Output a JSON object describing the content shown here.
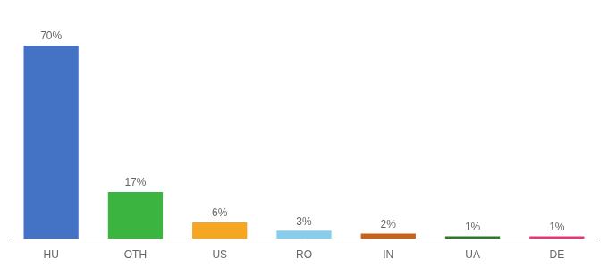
{
  "chart_data": {
    "type": "bar",
    "categories": [
      "HU",
      "OTH",
      "US",
      "RO",
      "IN",
      "UA",
      "DE"
    ],
    "values": [
      70,
      17,
      6,
      3,
      2,
      1,
      1
    ],
    "value_labels": [
      "70%",
      "17%",
      "6%",
      "3%",
      "2%",
      "1%",
      "1%"
    ],
    "colors": [
      "#4472c4",
      "#3cb540",
      "#f5a623",
      "#87ceeb",
      "#c8621a",
      "#2d7a2d",
      "#e8357a"
    ],
    "ylim": [
      0,
      80
    ],
    "grid": false,
    "legend": false,
    "data_labels": true,
    "tick_labels": "x"
  }
}
